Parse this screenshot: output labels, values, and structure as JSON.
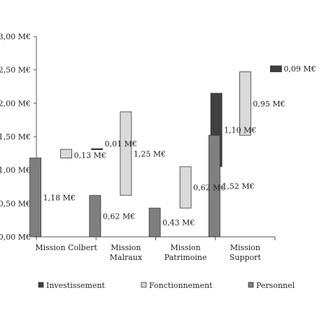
{
  "chart_data": {
    "type": "bar",
    "subtype": "waterfall-stacked",
    "categories": [
      "Mission Colbert",
      "Mission Malraux",
      "Mission Patrimoine",
      "Mission Support"
    ],
    "category_lines": [
      [
        "Mission Colbert"
      ],
      [
        "Mission",
        "Malraux"
      ],
      [
        "Mission",
        "Patrimoine"
      ],
      [
        "Mission",
        "Support"
      ]
    ],
    "series": [
      {
        "name": "Personnel",
        "values": [
          1.18,
          0.62,
          0.43,
          1.52
        ],
        "labels": [
          "1,18 M€",
          "0,62 M€",
          "0,43 M€",
          "1,52 M€"
        ],
        "color": "#7f7f7f"
      },
      {
        "name": "Fonctionnement",
        "values": [
          0.13,
          1.25,
          0.62,
          0.95
        ],
        "labels": [
          "0,13 M€",
          "1,25 M€",
          "0,62 M€",
          "0,95 M€"
        ],
        "color": "#d9d9d9"
      },
      {
        "name": "Investissement",
        "values": [
          0.01,
          0,
          1.1,
          0.09
        ],
        "labels": [
          "0,01 M€",
          "",
          "1,10 M€",
          "0,09 M€"
        ],
        "color": "#404040"
      }
    ],
    "ylim": [
      0,
      3.0
    ],
    "yticks": [
      "0,00 M€",
      "0,50 M€",
      "1,00 M€",
      "1,50 M€",
      "2,00 M€",
      "2,50 M€",
      "3,00 M€"
    ],
    "ytick_values": [
      0,
      0.5,
      1.0,
      1.5,
      2.0,
      2.5,
      3.0
    ],
    "legend_order": [
      "Investissement",
      "Fonctionnement",
      "Personnel"
    ],
    "legend_position": "bottom",
    "grid": false,
    "title": "",
    "xlabel": "",
    "ylabel": ""
  }
}
